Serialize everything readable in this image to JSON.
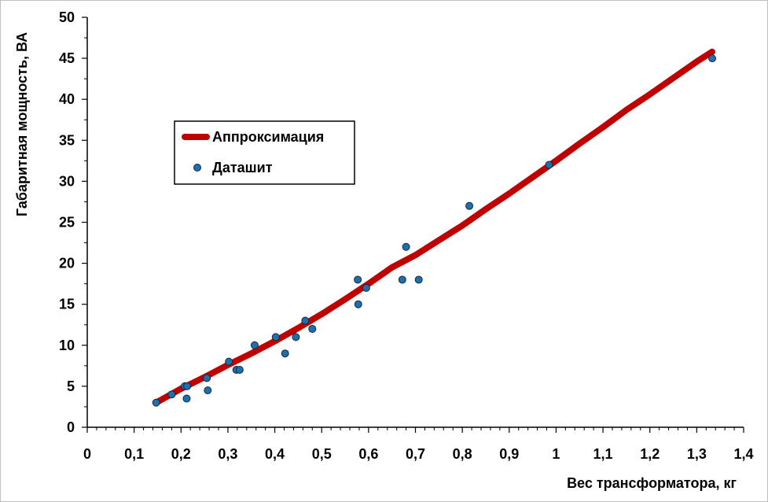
{
  "chart_data": {
    "type": "scatter",
    "title": "",
    "xlabel": "Вес трансформатора, кг",
    "ylabel": "Габаритная мощность, ВА",
    "xlim": [
      0,
      1.4
    ],
    "ylim": [
      0,
      50
    ],
    "x_ticks": [
      "0",
      "0,1",
      "0,2",
      "0,3",
      "0,4",
      "0,5",
      "0,6",
      "0,7",
      "0,8",
      "0,9",
      "1",
      "1,1",
      "1,2",
      "1,3",
      "1,4"
    ],
    "y_ticks": [
      "0",
      "5",
      "10",
      "15",
      "20",
      "25",
      "30",
      "35",
      "40",
      "45",
      "50"
    ],
    "grid": false,
    "legend_position": "upper-left",
    "series": [
      {
        "name": "Аппроксимация",
        "kind": "line",
        "color": "#c00000",
        "x": [
          0.147,
          0.2,
          0.25,
          0.3,
          0.35,
          0.4,
          0.45,
          0.5,
          0.55,
          0.6,
          0.65,
          0.7,
          0.75,
          0.8,
          0.85,
          0.9,
          0.95,
          1.0,
          1.05,
          1.1,
          1.15,
          1.2,
          1.25,
          1.3,
          1.333
        ],
        "y": [
          3.0,
          4.7,
          6.1,
          7.6,
          9.0,
          10.5,
          12.1,
          13.8,
          15.6,
          17.5,
          19.5,
          21.0,
          22.8,
          24.6,
          26.6,
          28.5,
          30.5,
          32.5,
          34.6,
          36.6,
          38.7,
          40.6,
          42.6,
          44.6,
          45.8
        ]
      },
      {
        "name": "Даташит",
        "kind": "scatter",
        "color": "#1f6fad",
        "edge_color": "#0f2a44",
        "x": [
          0.147,
          0.18,
          0.208,
          0.213,
          0.212,
          0.255,
          0.257,
          0.302,
          0.318,
          0.325,
          0.357,
          0.402,
          0.422,
          0.445,
          0.465,
          0.48,
          0.577,
          0.578,
          0.595,
          0.672,
          0.68,
          0.707,
          0.815,
          0.985,
          1.333
        ],
        "y": [
          3,
          4,
          5,
          5,
          3.5,
          6,
          4.5,
          8,
          7,
          7,
          10,
          11,
          9,
          11,
          13,
          12,
          18,
          15,
          17,
          18,
          22,
          18,
          27,
          32,
          45
        ]
      }
    ]
  }
}
